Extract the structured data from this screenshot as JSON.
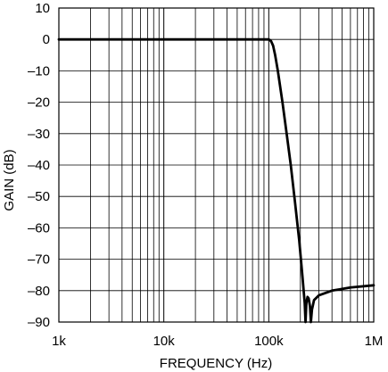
{
  "chart_data": {
    "type": "line",
    "xlabel": "FREQUENCY (Hz)",
    "ylabel": "GAIN (dB)",
    "xscale": "log",
    "xlim": [
      1000,
      1000000
    ],
    "ylim": [
      -90,
      10
    ],
    "grid": true,
    "x_ticks": [
      {
        "value": 1000,
        "label": "1k"
      },
      {
        "value": 10000,
        "label": "10k"
      },
      {
        "value": 100000,
        "label": "100k"
      },
      {
        "value": 1000000,
        "label": "1M"
      }
    ],
    "y_ticks": [
      {
        "value": 10,
        "label": "10"
      },
      {
        "value": 0,
        "label": "0"
      },
      {
        "value": -10,
        "label": "–10"
      },
      {
        "value": -20,
        "label": "–20"
      },
      {
        "value": -30,
        "label": "–30"
      },
      {
        "value": -40,
        "label": "–40"
      },
      {
        "value": -50,
        "label": "–50"
      },
      {
        "value": -60,
        "label": "–60"
      },
      {
        "value": -70,
        "label": "–70"
      },
      {
        "value": -80,
        "label": "–80"
      },
      {
        "value": -90,
        "label": "–90"
      }
    ],
    "series": [
      {
        "color": "#000000",
        "points": [
          [
            1000,
            0
          ],
          [
            10000,
            0
          ],
          [
            50000,
            0
          ],
          [
            90000,
            0
          ],
          [
            100000,
            0
          ],
          [
            105000,
            -0.5
          ],
          [
            110000,
            -2
          ],
          [
            115000,
            -5
          ],
          [
            122000,
            -10
          ],
          [
            135000,
            -20
          ],
          [
            148000,
            -30
          ],
          [
            162000,
            -40
          ],
          [
            178000,
            -52
          ],
          [
            195000,
            -64
          ],
          [
            210000,
            -76
          ],
          [
            220000,
            -84
          ],
          [
            224000,
            -90
          ],
          [
            228000,
            -84
          ],
          [
            234000,
            -82
          ],
          [
            240000,
            -82.5
          ],
          [
            247000,
            -85
          ],
          [
            252000,
            -90
          ],
          [
            258000,
            -86
          ],
          [
            270000,
            -83
          ],
          [
            300000,
            -81.5
          ],
          [
            400000,
            -80
          ],
          [
            600000,
            -79
          ],
          [
            1000000,
            -78.3
          ]
        ]
      }
    ]
  }
}
